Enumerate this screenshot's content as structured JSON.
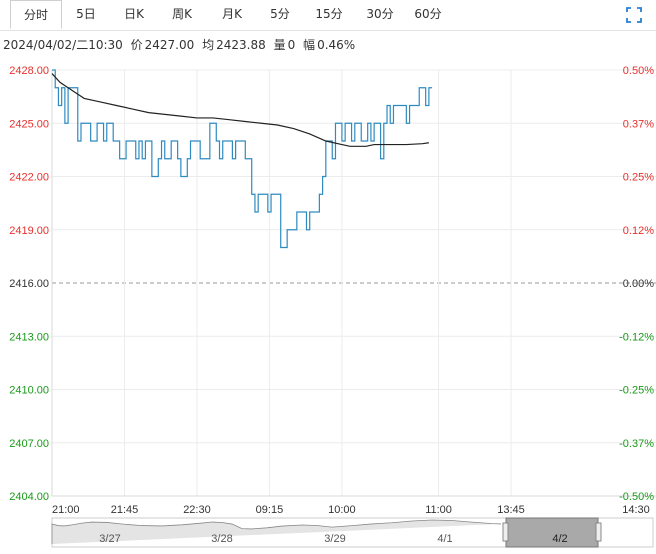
{
  "tabs": [
    {
      "label": "分时",
      "active": true
    },
    {
      "label": "5日",
      "active": false
    },
    {
      "label": "日K",
      "active": false
    },
    {
      "label": "周K",
      "active": false
    },
    {
      "label": "月K",
      "active": false
    },
    {
      "label": "5分",
      "active": false
    },
    {
      "label": "15分",
      "active": false
    },
    {
      "label": "30分",
      "active": false
    },
    {
      "label": "60分",
      "active": false
    }
  ],
  "fullscreen_icon": "fullscreen-icon",
  "info": {
    "datetime": "2024/04/02/二10:30",
    "price_label": "价",
    "price": "2427.00",
    "avg_label": "均",
    "avg": "2423.88",
    "vol_label": "量",
    "vol": "0",
    "amp_label": "幅",
    "amp": "0.46%"
  },
  "colors": {
    "price_line": "#2e8bc0",
    "avg_line": "#222222",
    "up": "#e8302c",
    "down": "#1a9a1a",
    "neutral": "#333333"
  },
  "chart_data": {
    "type": "line",
    "title": "",
    "ylim": [
      2404.0,
      2428.0
    ],
    "base": 2416.0,
    "left_ticks": [
      "2428.00",
      "2425.00",
      "2422.00",
      "2419.00",
      "2416.00",
      "2413.00",
      "2410.00",
      "2407.00",
      "2404.00"
    ],
    "right_ticks": [
      "0.50%",
      "0.37%",
      "0.25%",
      "0.12%",
      "0.00%",
      "-0.12%",
      "-0.25%",
      "-0.37%",
      "-0.50%"
    ],
    "x_ticks": [
      "21:00",
      "21:45",
      "22:30",
      "09:15",
      "10:00",
      "11:00",
      "13:45",
      "14:30"
    ],
    "session_count": 375,
    "series": [
      {
        "key": "price",
        "values": [
          2428,
          2427,
          2426,
          2427,
          2425,
          2427,
          2427,
          2427,
          2424,
          2425,
          2425,
          2425,
          2424,
          2424,
          2425,
          2425,
          2424,
          2425,
          2425,
          2424,
          2424,
          2423,
          2423,
          2424,
          2424,
          2424,
          2423,
          2424,
          2423,
          2424,
          2424,
          2422,
          2422,
          2423,
          2424,
          2423,
          2423,
          2424,
          2424,
          2423,
          2422,
          2422,
          2423,
          2424,
          2424,
          2424,
          2423,
          2423,
          2423,
          2425,
          2425,
          2424,
          2423,
          2424,
          2424,
          2424,
          2423,
          2424,
          2424,
          2424,
          2423,
          2423,
          2421,
          2420,
          2421,
          2421,
          2421,
          2420,
          2421,
          2421,
          2421,
          2418,
          2418,
          2419,
          2419,
          2419,
          2420,
          2420,
          2420,
          2419,
          2420,
          2420,
          2420,
          2421,
          2422,
          2424,
          2424,
          2423,
          2425,
          2425,
          2424,
          2425,
          2425,
          2424,
          2425,
          2425,
          2424,
          2424,
          2425,
          2424,
          2425,
          2425,
          2423,
          2425,
          2426,
          2425,
          2426,
          2426,
          2426,
          2426,
          2425,
          2426,
          2426,
          2426,
          2427,
          2427,
          2426,
          2427
        ],
        "x_indices": [
          0,
          2,
          4,
          6,
          8,
          10,
          12,
          14,
          16,
          18,
          20,
          22,
          24,
          26,
          28,
          30,
          32,
          34,
          36,
          38,
          40,
          42,
          44,
          46,
          48,
          50,
          52,
          54,
          56,
          58,
          60,
          62,
          64,
          66,
          68,
          70,
          72,
          74,
          76,
          78,
          80,
          82,
          84,
          86,
          88,
          90,
          92,
          94,
          96,
          98,
          100,
          102,
          104,
          106,
          108,
          110,
          112,
          114,
          116,
          118,
          120,
          122,
          124,
          126,
          128,
          130,
          132,
          134,
          136,
          138,
          140,
          142,
          144,
          146,
          148,
          150,
          152,
          154,
          156,
          158,
          160,
          162,
          164,
          166,
          168,
          170,
          172,
          174,
          176,
          178,
          180,
          182,
          184,
          186,
          188,
          190,
          192,
          194,
          196,
          198,
          200,
          202,
          204,
          206,
          208,
          210,
          212,
          214,
          216,
          218,
          220,
          222,
          224,
          226,
          228,
          230,
          232,
          234
        ]
      },
      {
        "key": "avg",
        "values": [
          2427.8,
          2427.3,
          2427.0,
          2426.7,
          2426.4,
          2426.2,
          2426.0,
          2425.8,
          2425.6,
          2425.5,
          2425.4,
          2425.3,
          2425.3,
          2425.2,
          2425.1,
          2425.0,
          2424.9,
          2424.7,
          2424.4,
          2424.0,
          2423.8,
          2423.7,
          2423.7,
          2423.7,
          2423.8,
          2423.8,
          2423.8,
          2423.85,
          2423.9
        ],
        "x_indices": [
          0,
          5,
          10,
          15,
          20,
          30,
          40,
          50,
          60,
          70,
          80,
          90,
          100,
          110,
          120,
          130,
          140,
          150,
          160,
          170,
          180,
          185,
          190,
          195,
          200,
          210,
          220,
          230,
          234
        ]
      }
    ],
    "navigator": {
      "labels": [
        "3/27",
        "3/28",
        "3/29",
        "4/1",
        "4/2"
      ],
      "selected": "4/2"
    }
  }
}
